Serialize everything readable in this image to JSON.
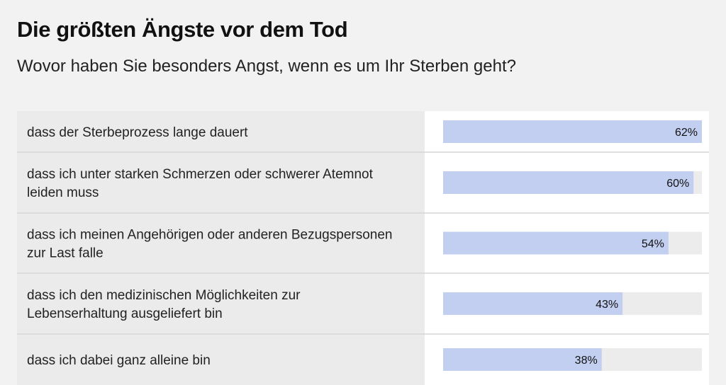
{
  "header": {
    "title": "Die größten Ängste vor dem Tod",
    "subtitle": "Wovor haben Sie besonders Angst, wenn es um Ihr Sterben geht?"
  },
  "colors": {
    "page_background": "#f2f2f2",
    "label_column_background": "#ebebeb",
    "bar_column_background": "#ffffff",
    "bar_track": "#ececec",
    "bar_fill": "#c3cff0",
    "divider": "#d6d6d6"
  },
  "chart_data": {
    "type": "bar",
    "orientation": "horizontal",
    "title": "Die größten Ängste vor dem Tod",
    "subtitle": "Wovor haben Sie besonders Angst, wenn es um Ihr Sterben geht?",
    "categories": [
      [
        "dass der Sterbeprozess lange dauert"
      ],
      [
        "dass ich unter starken Schmerzen oder schwerer Atemnot",
        "leiden muss"
      ],
      [
        "dass ich meinen Angehörigen oder anderen Bezugspersonen",
        "zur Last falle"
      ],
      [
        "dass ich den medizinischen Möglichkeiten zur",
        "Lebenserhaltung ausgeliefert bin"
      ],
      [
        "dass ich dabei ganz alleine bin"
      ]
    ],
    "values": [
      62,
      60,
      54,
      43,
      38
    ],
    "value_labels": [
      "62%",
      "60%",
      "54%",
      "43%",
      "38%"
    ],
    "unit": "%",
    "xlim": [
      0,
      62
    ],
    "grid": false,
    "legend": "none"
  }
}
